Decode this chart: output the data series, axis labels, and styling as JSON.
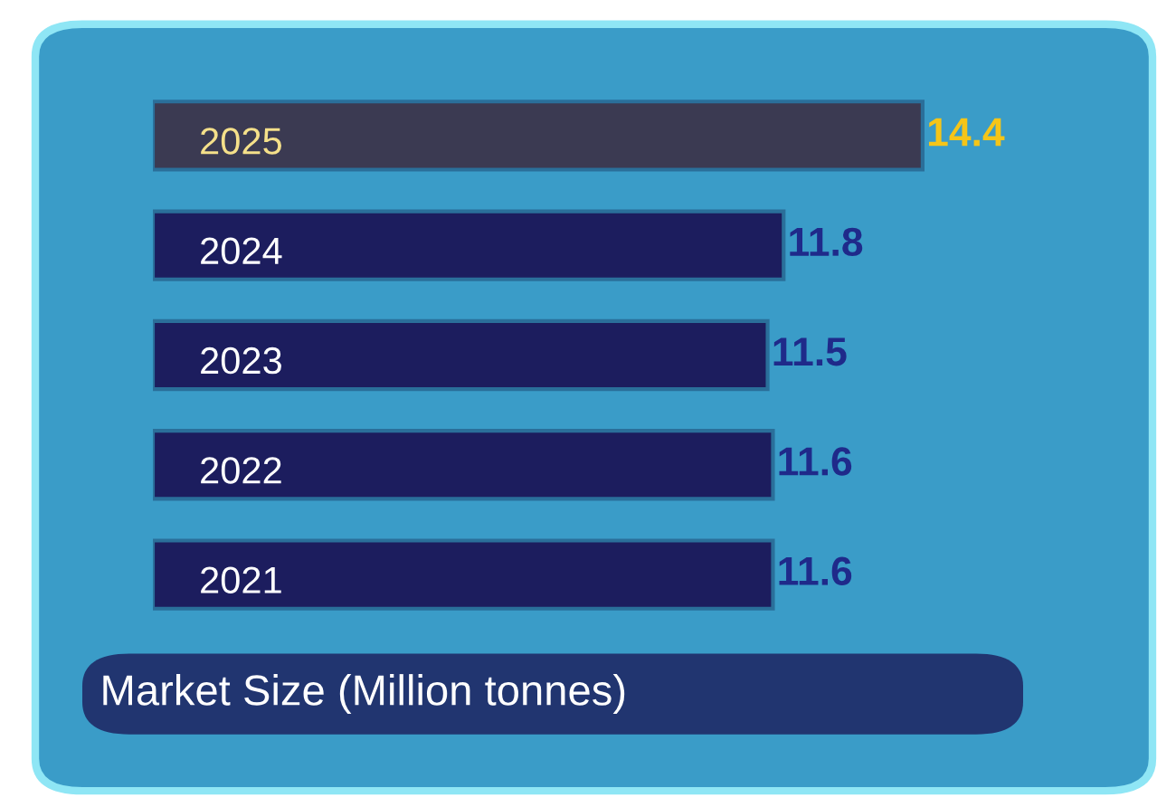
{
  "chart_data": {
    "type": "bar",
    "orientation": "horizontal",
    "xlabel": "Market Size (Million tonnes)",
    "categories": [
      "2025",
      "2024",
      "2023",
      "2022",
      "2021"
    ],
    "values": [
      14.4,
      11.8,
      11.5,
      11.6,
      11.6
    ],
    "colors": [
      "#3b3a52",
      "#1c1d5e",
      "#1c1d5e",
      "#1c1d5e",
      "#1c1d5e"
    ],
    "data_labels": true,
    "legend": false
  }
}
